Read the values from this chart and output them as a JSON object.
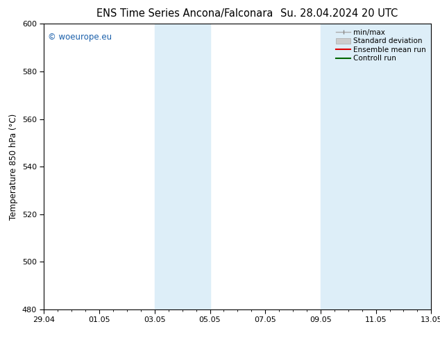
{
  "title": "ENS Time Series Ancona/Falconara",
  "title_right": "Su. 28.04.2024 20 UTC",
  "ylabel": "Temperature 850 hPa (°C)",
  "xlabel_ticks": [
    "29.04",
    "01.05",
    "03.05",
    "05.05",
    "07.05",
    "09.05",
    "11.05",
    "13.05"
  ],
  "ylim": [
    480,
    600
  ],
  "yticks": [
    480,
    500,
    520,
    540,
    560,
    580,
    600
  ],
  "xlim": [
    0,
    14
  ],
  "xtick_positions": [
    0,
    2,
    4,
    6,
    8,
    10,
    12,
    14
  ],
  "shaded_bands": [
    {
      "xmin": 4.0,
      "xmax": 6.0,
      "color": "#ddeef8"
    },
    {
      "xmin": 10.0,
      "xmax": 14.0,
      "color": "#ddeef8"
    }
  ],
  "watermark": "© woeurope.eu",
  "watermark_color": "#1a5faa",
  "background_color": "#ffffff",
  "plot_bg_color": "#ffffff",
  "grid_color": "#cccccc",
  "legend_items": [
    {
      "label": "min/max",
      "color": "#aaaaaa",
      "style": "minmax"
    },
    {
      "label": "Standard deviation",
      "color": "#cccccc",
      "style": "stddev"
    },
    {
      "label": "Ensemble mean run",
      "color": "#dd0000",
      "style": "line"
    },
    {
      "label": "Controll run",
      "color": "#006600",
      "style": "line"
    }
  ],
  "font_size_title": 10.5,
  "font_size_axis": 8.5,
  "font_size_legend": 7.5,
  "font_size_ticks": 8,
  "font_size_watermark": 8.5
}
